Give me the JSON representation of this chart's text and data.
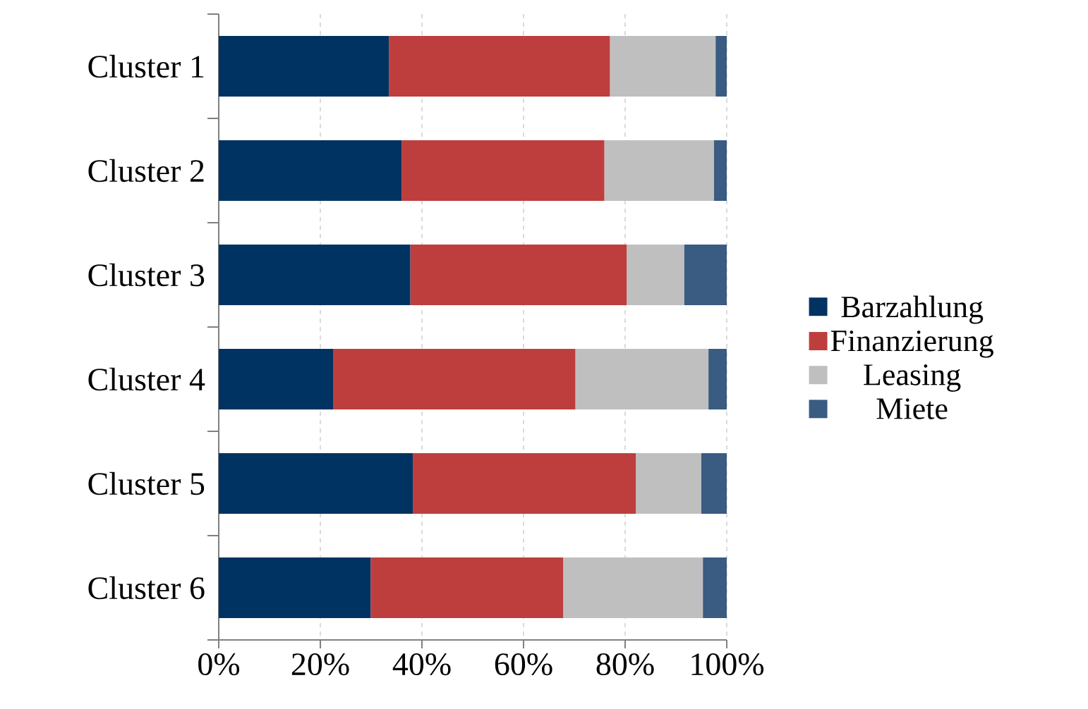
{
  "chart_data": {
    "type": "bar",
    "orientation": "horizontal",
    "stacked": true,
    "categories": [
      "Cluster 1",
      "Cluster 2",
      "Cluster 3",
      "Cluster 4",
      "Cluster 5",
      "Cluster 6"
    ],
    "series": [
      {
        "name": "Barzahlung",
        "color": "#003361",
        "values": [
          33.5,
          36.0,
          37.7,
          22.5,
          38.2,
          29.9
        ]
      },
      {
        "name": "Finanzierung",
        "color": "#be3e3e",
        "values": [
          43.5,
          39.9,
          42.6,
          47.7,
          43.9,
          37.9
        ]
      },
      {
        "name": "Leasing",
        "color": "#bfbfbf",
        "values": [
          20.8,
          21.6,
          11.3,
          26.2,
          12.9,
          27.5
        ]
      },
      {
        "name": "Miete",
        "color": "#3a5b82",
        "values": [
          2.2,
          2.5,
          8.4,
          3.6,
          5.0,
          4.7
        ]
      }
    ],
    "xlim": [
      0,
      100
    ],
    "xticks": [
      {
        "value": 0,
        "label": "0%"
      },
      {
        "value": 20,
        "label": "20%"
      },
      {
        "value": 40,
        "label": "40%"
      },
      {
        "value": 60,
        "label": "60%"
      },
      {
        "value": 80,
        "label": "80%"
      },
      {
        "value": 100,
        "label": "100%"
      }
    ],
    "grid": "x",
    "legend": "right"
  }
}
